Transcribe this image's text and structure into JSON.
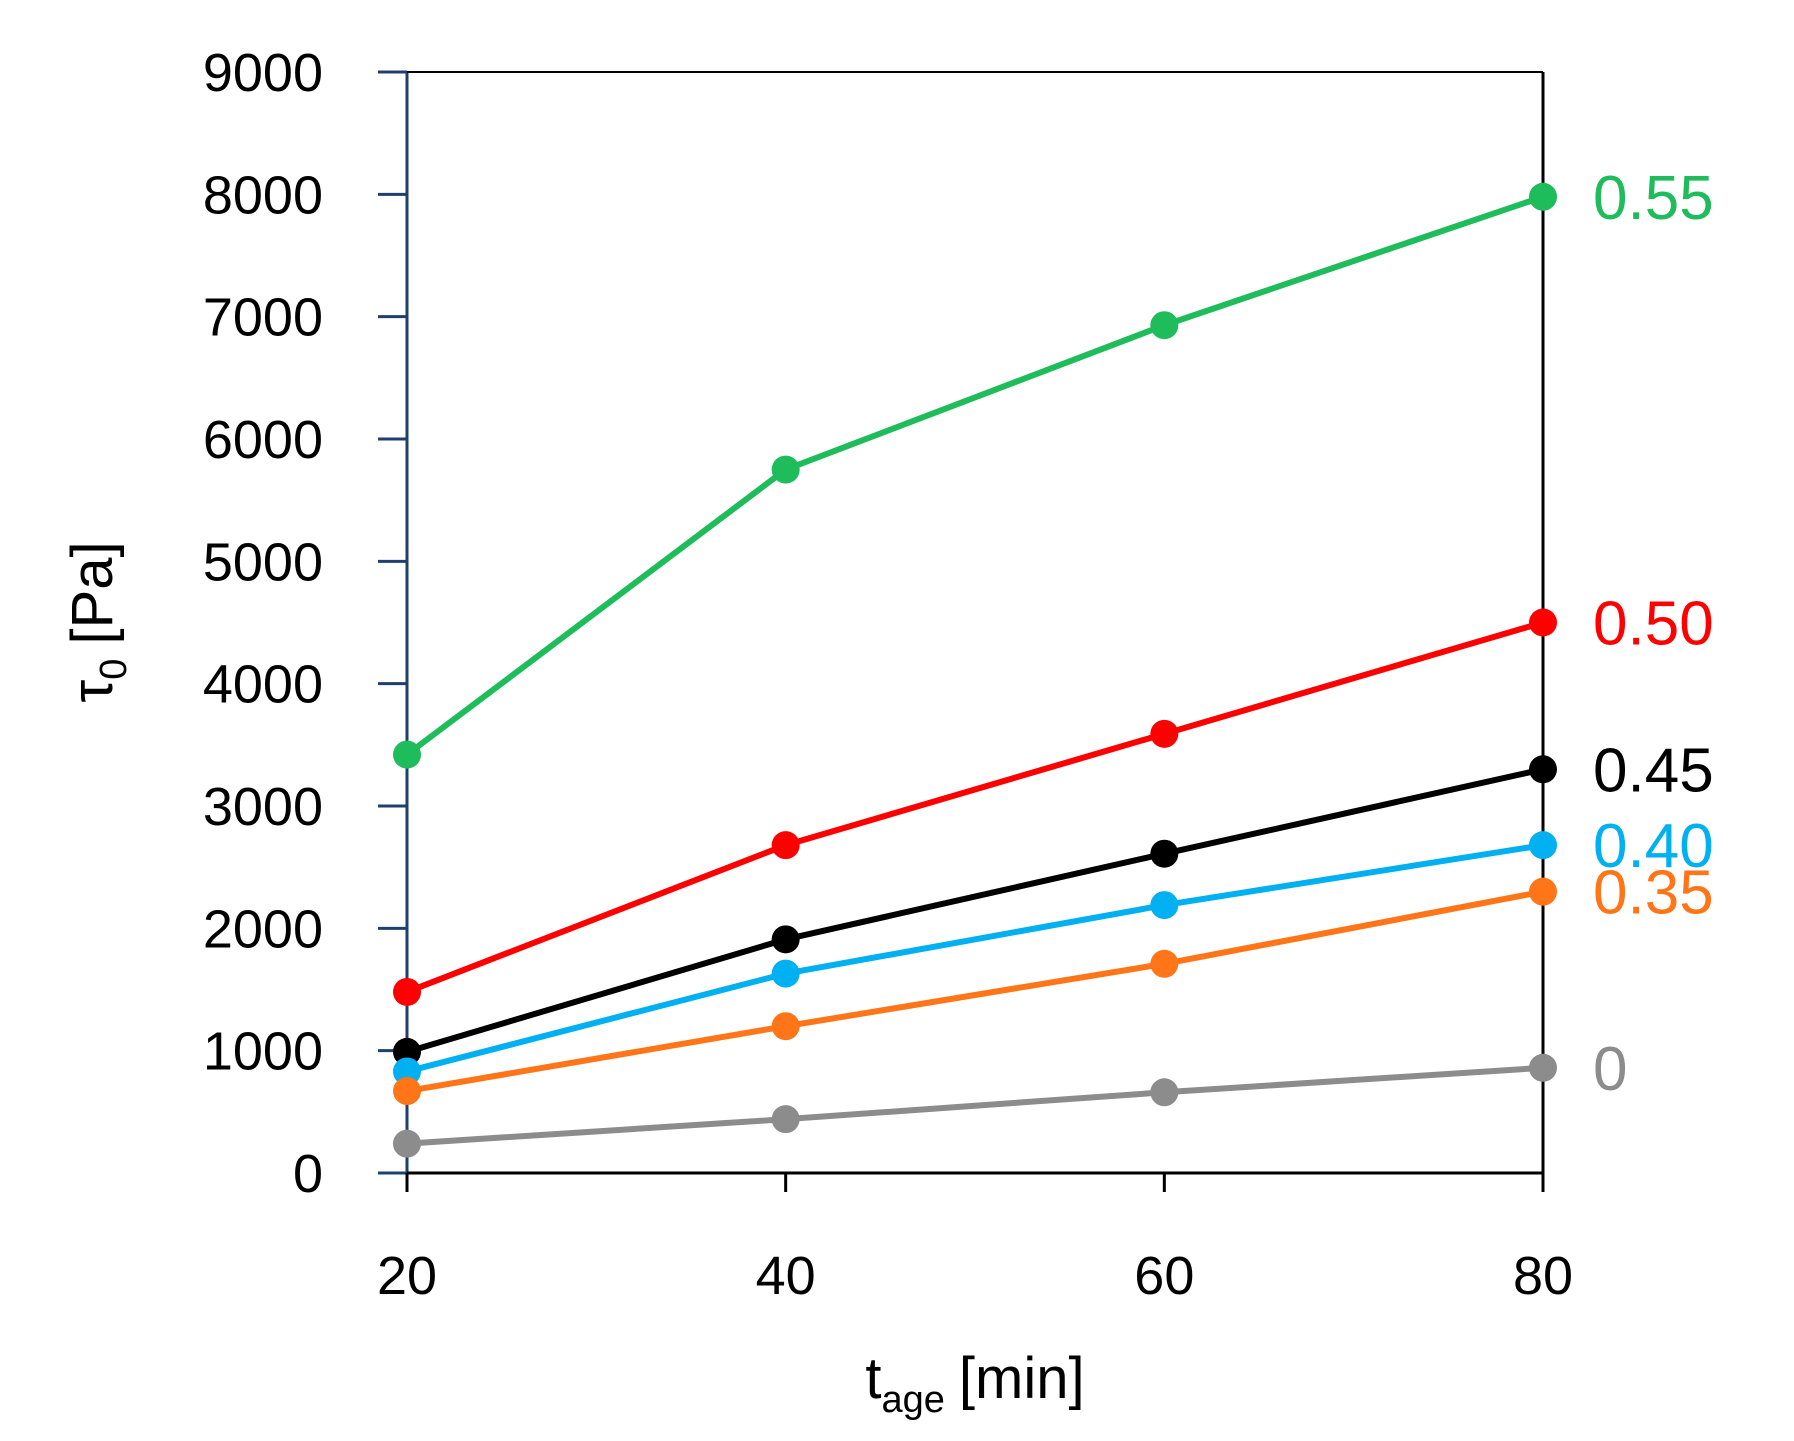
{
  "chart_data": {
    "type": "line",
    "title": "",
    "xlabel": {
      "main": "t",
      "sub": "age",
      "unit": "[min]"
    },
    "ylabel": {
      "main": "τ",
      "sub": "0",
      "unit": "[Pa]"
    },
    "x": [
      20,
      40,
      60,
      80
    ],
    "xlim": [
      20,
      80
    ],
    "ylim": [
      0,
      9000
    ],
    "xticks": [
      "20",
      "40",
      "60",
      "80"
    ],
    "yticks": [
      "0",
      "1000",
      "2000",
      "3000",
      "4000",
      "5000",
      "6000",
      "7000",
      "8000",
      "9000"
    ],
    "grid": false,
    "legend": "end-of-line labels",
    "series": [
      {
        "name": "0.55",
        "color": "#1ebc5a",
        "values": [
          3420,
          5750,
          6930,
          7980
        ]
      },
      {
        "name": "0.50",
        "color": "#ff0000",
        "values": [
          1480,
          2680,
          3590,
          4500
        ]
      },
      {
        "name": "0.45",
        "color": "#000000",
        "values": [
          990,
          1910,
          2610,
          3300
        ]
      },
      {
        "name": "0.40",
        "color": "#00b0f0",
        "values": [
          830,
          1630,
          2190,
          2680
        ]
      },
      {
        "name": "0.35",
        "color": "#ff7518",
        "values": [
          670,
          1200,
          1710,
          2300
        ]
      },
      {
        "name": "0",
        "color": "#8c8c8c",
        "values": [
          240,
          440,
          660,
          860
        ]
      }
    ]
  }
}
